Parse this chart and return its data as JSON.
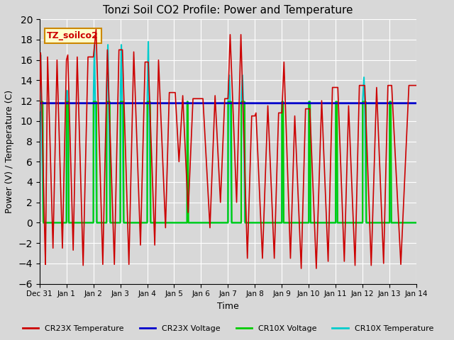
{
  "title": "Tonzi Soil CO2 Profile: Power and Temperature",
  "xlabel": "Time",
  "ylabel": "Power (V) / Temperature (C)",
  "ylim": [
    -6,
    20
  ],
  "yticks": [
    -6,
    -4,
    -2,
    0,
    2,
    4,
    6,
    8,
    10,
    12,
    14,
    16,
    18,
    20
  ],
  "bg_color": "#d8d8d8",
  "annotation_text": "TZ_soilco2",
  "annotation_bg": "#ffffcc",
  "annotation_border": "#cc8800",
  "annotation_text_color": "#cc0000",
  "cr23x_temp_color": "#cc0000",
  "cr23x_volt_color": "#0000cc",
  "cr10x_volt_color": "#00cc00",
  "cr10x_temp_color": "#00cccc",
  "cr23x_volt_value": 11.75,
  "legend_labels": [
    "CR23X Temperature",
    "CR23X Voltage",
    "CR10X Voltage",
    "CR10X Temperature"
  ],
  "x_tick_labels": [
    "Dec 31",
    "Jan 1",
    "Jan 2",
    "Jan 3",
    "Jan 4",
    "Jan 5",
    "Jan 6",
    "Jan 7",
    "Jan 8",
    "Jan 9",
    "Jan 10",
    "Jan 11",
    "Jan 12",
    "Jan 13",
    "Jan 14"
  ],
  "num_days": 14
}
